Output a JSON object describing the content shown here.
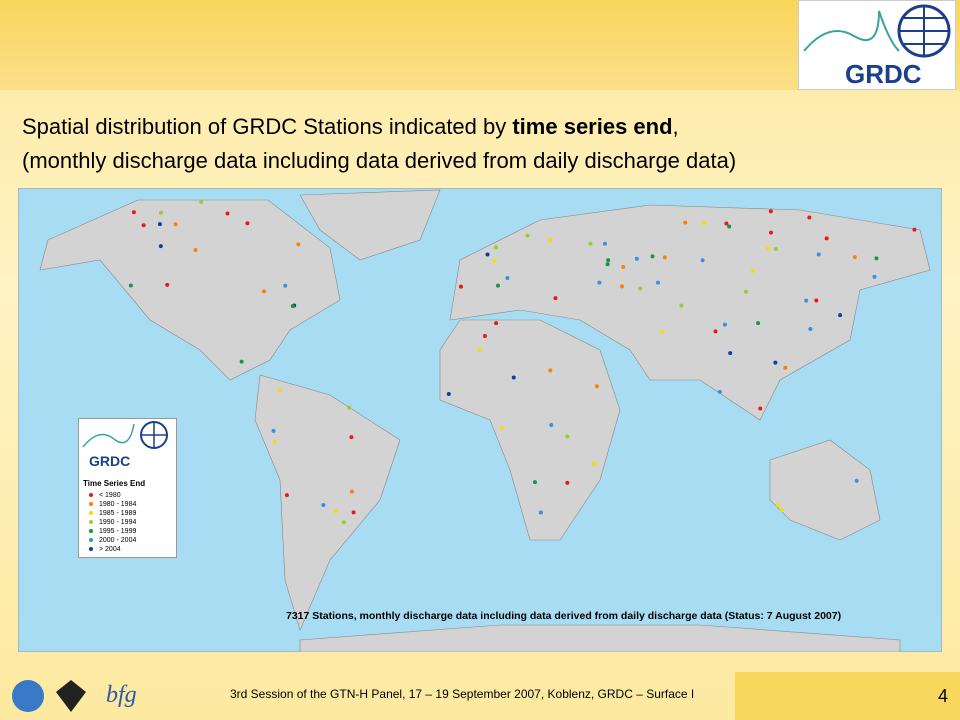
{
  "header": {
    "title_start": "Spatial distribution of GRDC Stations indicated by ",
    "title_bold": "time series end",
    "title_end": ",",
    "title_line2": "(monthly discharge data including data derived from daily discharge data)",
    "logo": "GRDC"
  },
  "map": {
    "caption": "7317 Stations, monthly discharge data including data derived from daily discharge data (Status: 7 August 2007)"
  },
  "legend": {
    "logo": "GRDC",
    "title": "Time Series End",
    "entries": [
      {
        "label": "< 1980",
        "color": "#e31a1c"
      },
      {
        "label": "1980 - 1984",
        "color": "#ff7f00"
      },
      {
        "label": "1985 - 1989",
        "color": "#f5e000"
      },
      {
        "label": "1990 - 1994",
        "color": "#9acd32"
      },
      {
        "label": "1995 - 1999",
        "color": "#1a9641"
      },
      {
        "label": "2000 - 2004",
        "color": "#3a8ee6"
      },
      {
        "label": "> 2004",
        "color": "#0b3fa8"
      }
    ]
  },
  "footer": {
    "text": "3rd Session of the GTN-H Panel, 17 – 19 September 2007, Koblenz, GRDC – Surface I",
    "page": "4"
  }
}
